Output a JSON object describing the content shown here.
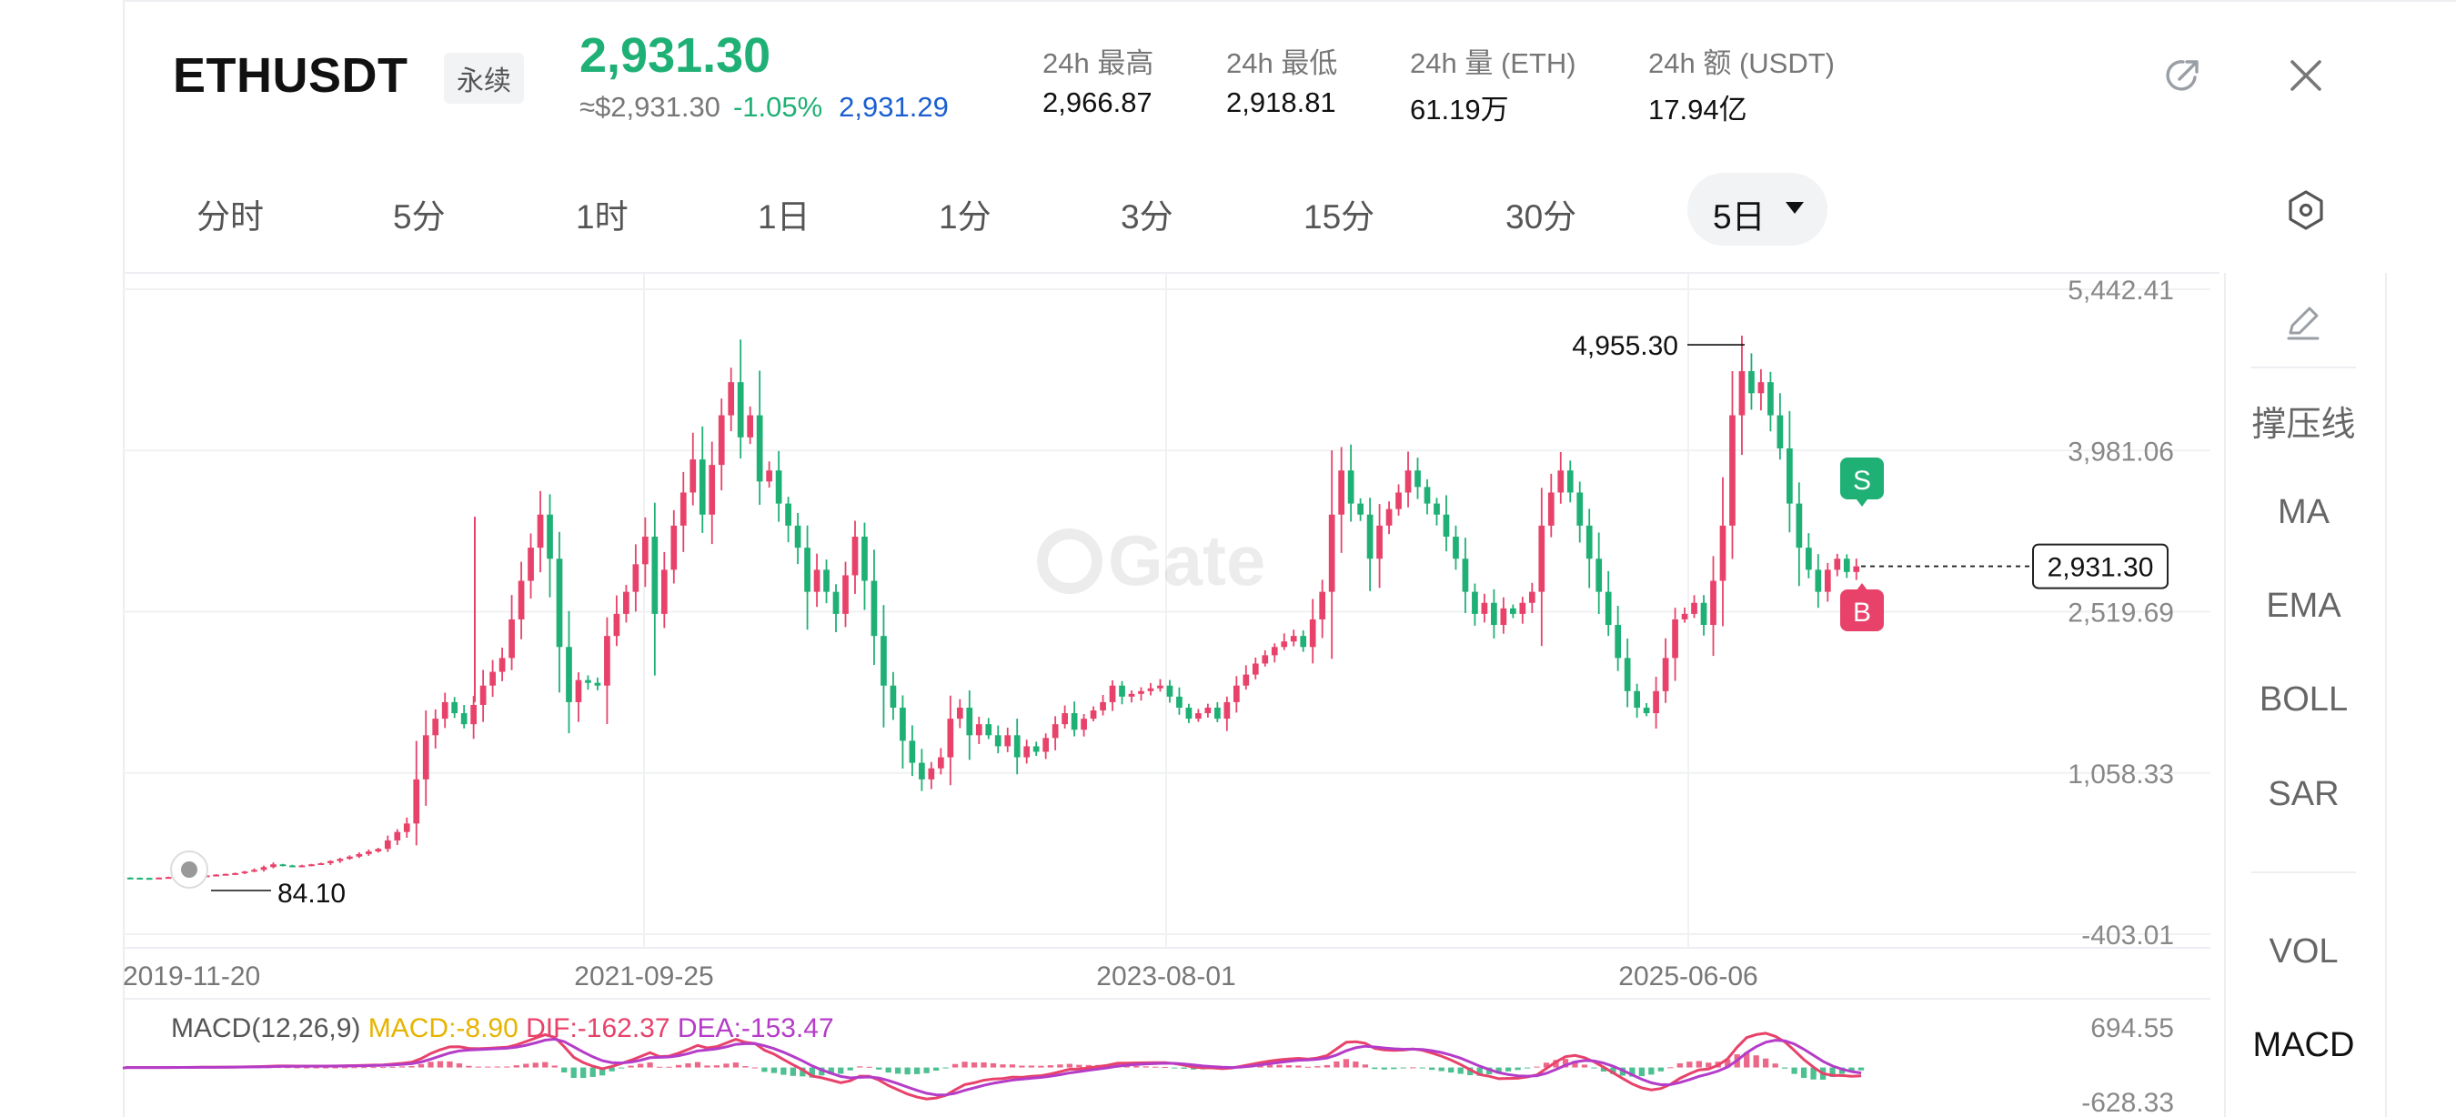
{
  "header": {
    "symbol": "ETHUSDT",
    "contract_badge": "永续",
    "last_price": "2,931.30",
    "approx_price": "≈$2,931.30",
    "change_pct": "-1.05%",
    "mark_price": "2,931.29",
    "stats": [
      {
        "label": "24h  最高",
        "value": "2,966.87"
      },
      {
        "label": "24h  最低",
        "value": "2,918.81"
      },
      {
        "label": "24h  量 (ETH)",
        "value": "61.19万"
      },
      {
        "label": "24h  额 (USDT)",
        "value": "17.94亿"
      }
    ],
    "icons": {
      "share": "share-icon",
      "close": "close-icon"
    }
  },
  "timeframes": [
    "分时",
    "5分",
    "1时",
    "1日",
    "1分",
    "3分",
    "15分",
    "30分"
  ],
  "active_timeframe": "5日",
  "side_panel": {
    "items": [
      "撑压线",
      "MA",
      "EMA",
      "BOLL",
      "SAR"
    ],
    "indicators": [
      "VOL",
      "MACD"
    ],
    "active_indicator": "MACD"
  },
  "colors": {
    "up": "#e8426a",
    "down": "#1fb075",
    "accent": "#1fb075",
    "mark": "#1a5fd0"
  },
  "chart_data": {
    "type": "candlestick",
    "y_ticks": [
      "5,442.41",
      "3,981.06",
      "2,519.69",
      "1,058.33",
      "-403.01"
    ],
    "ylim": [
      -403.01,
      5442.41
    ],
    "x_ticks": [
      "2019-11-20",
      "2021-09-25",
      "2023-08-01",
      "2025-06-06"
    ],
    "annotations": {
      "high": "4,955.30",
      "low": "84.10",
      "last": "2,931.30",
      "sell_marker": "S",
      "buy_marker": "B"
    },
    "price_path": [
      [
        0,
        110
      ],
      [
        3,
        105
      ],
      [
        6,
        120
      ],
      [
        9,
        130
      ],
      [
        12,
        150
      ],
      [
        14,
        180
      ],
      [
        16,
        230
      ],
      [
        18,
        210
      ],
      [
        21,
        240
      ],
      [
        24,
        300
      ],
      [
        27,
        370
      ],
      [
        30,
        600
      ],
      [
        32,
        1400
      ],
      [
        34,
        1700
      ],
      [
        36,
        1500
      ],
      [
        38,
        1850
      ],
      [
        40,
        2100
      ],
      [
        42,
        2800
      ],
      [
        44,
        3400
      ],
      [
        45,
        3000
      ],
      [
        46,
        2200
      ],
      [
        47,
        1700
      ],
      [
        48,
        1900
      ],
      [
        50,
        1850
      ],
      [
        51,
        2300
      ],
      [
        53,
        2700
      ],
      [
        55,
        3200
      ],
      [
        56,
        2500
      ],
      [
        58,
        3300
      ],
      [
        60,
        3900
      ],
      [
        61,
        3400
      ],
      [
        63,
        4300
      ],
      [
        64,
        4600
      ],
      [
        65,
        4100
      ],
      [
        66,
        4300
      ],
      [
        67,
        3700
      ],
      [
        68,
        3800
      ],
      [
        69,
        3500
      ],
      [
        71,
        3100
      ],
      [
        72,
        2700
      ],
      [
        73,
        2900
      ],
      [
        75,
        2500
      ],
      [
        77,
        3200
      ],
      [
        78,
        2800
      ],
      [
        79,
        2300
      ],
      [
        80,
        1850
      ],
      [
        81,
        1650
      ],
      [
        82,
        1350
      ],
      [
        83,
        1150
      ],
      [
        84,
        1000
      ],
      [
        85,
        1100
      ],
      [
        86,
        1200
      ],
      [
        87,
        1550
      ],
      [
        88,
        1650
      ],
      [
        89,
        1400
      ],
      [
        90,
        1500
      ],
      [
        92,
        1300
      ],
      [
        93,
        1400
      ],
      [
        94,
        1200
      ],
      [
        95,
        1300
      ],
      [
        96,
        1250
      ],
      [
        98,
        1500
      ],
      [
        99,
        1600
      ],
      [
        100,
        1450
      ],
      [
        101,
        1550
      ],
      [
        103,
        1700
      ],
      [
        104,
        1850
      ],
      [
        105,
        1750
      ],
      [
        107,
        1800
      ],
      [
        109,
        1850
      ],
      [
        110,
        1750
      ],
      [
        112,
        1550
      ],
      [
        113,
        1600
      ],
      [
        114,
        1650
      ],
      [
        115,
        1550
      ],
      [
        117,
        1850
      ],
      [
        119,
        2050
      ],
      [
        121,
        2200
      ],
      [
        123,
        2300
      ],
      [
        124,
        2200
      ],
      [
        126,
        2700
      ],
      [
        127,
        3400
      ],
      [
        128,
        3800
      ],
      [
        129,
        3500
      ],
      [
        130,
        3400
      ],
      [
        131,
        3000
      ],
      [
        132,
        3300
      ],
      [
        134,
        3600
      ],
      [
        135,
        3800
      ],
      [
        137,
        3500
      ],
      [
        138,
        3400
      ],
      [
        139,
        3200
      ],
      [
        140,
        3000
      ],
      [
        141,
        2700
      ],
      [
        142,
        2500
      ],
      [
        143,
        2600
      ],
      [
        144,
        2400
      ],
      [
        145,
        2550
      ],
      [
        146,
        2500
      ],
      [
        147,
        2600
      ],
      [
        148,
        2700
      ],
      [
        149,
        3300
      ],
      [
        150,
        3600
      ],
      [
        151,
        3800
      ],
      [
        152,
        3600
      ],
      [
        153,
        3300
      ],
      [
        154,
        3000
      ],
      [
        155,
        2700
      ],
      [
        156,
        2400
      ],
      [
        157,
        2100
      ],
      [
        158,
        1800
      ],
      [
        159,
        1650
      ],
      [
        160,
        1600
      ],
      [
        161,
        1800
      ],
      [
        162,
        2100
      ],
      [
        163,
        2450
      ],
      [
        164,
        2500
      ],
      [
        165,
        2600
      ],
      [
        166,
        2400
      ],
      [
        167,
        2800
      ],
      [
        168,
        3300
      ],
      [
        169,
        4300
      ],
      [
        170,
        4700
      ],
      [
        171,
        4500
      ],
      [
        172,
        4600
      ],
      [
        173,
        4300
      ],
      [
        174,
        4000
      ],
      [
        175,
        3500
      ],
      [
        176,
        3100
      ],
      [
        177,
        2900
      ],
      [
        178,
        2700
      ],
      [
        179,
        2900
      ],
      [
        180,
        3000
      ],
      [
        181,
        2880
      ],
      [
        182,
        2931
      ]
    ],
    "macd": {
      "label": "MACD(12,26,9)",
      "macd": "MACD:-8.90",
      "dif": "DIF:-162.37",
      "dea": "DEA:-153.47",
      "y_ticks": [
        "694.55",
        "-628.33"
      ],
      "ylim": [
        -628.33,
        694.55
      ]
    }
  }
}
